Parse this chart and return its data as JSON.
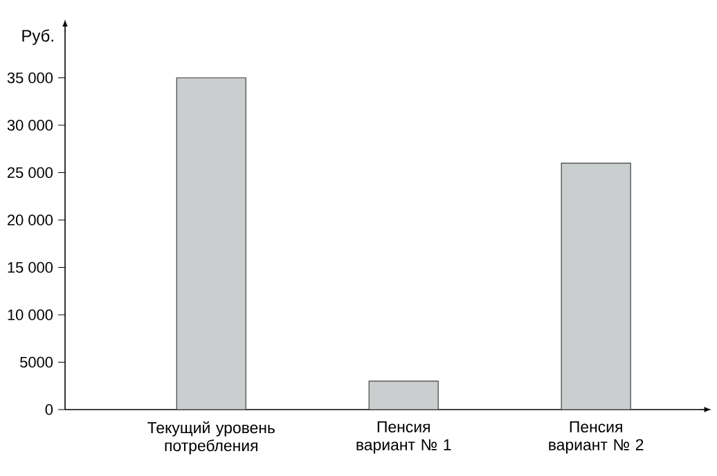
{
  "chart_data": {
    "type": "bar",
    "ylabel": "Руб.",
    "categories": [
      "Текущий уровень потребления",
      "Пенсия вариант № 1",
      "Пенсия вариант № 2"
    ],
    "values": [
      35000,
      3000,
      26000
    ],
    "color": "#cbcecf",
    "ylim": [
      0,
      40000
    ],
    "yticks": [
      0,
      5000,
      {
        "value": 10000,
        "label": "10 000"
      },
      {
        "value": 15000,
        "label": "15 000"
      },
      {
        "value": 20000,
        "label": "20 000"
      },
      {
        "value": 25000,
        "label": "25 000"
      },
      {
        "value": 30000,
        "label": "30 000"
      },
      {
        "value": 35000,
        "label": "35 000"
      }
    ],
    "grid": false
  }
}
